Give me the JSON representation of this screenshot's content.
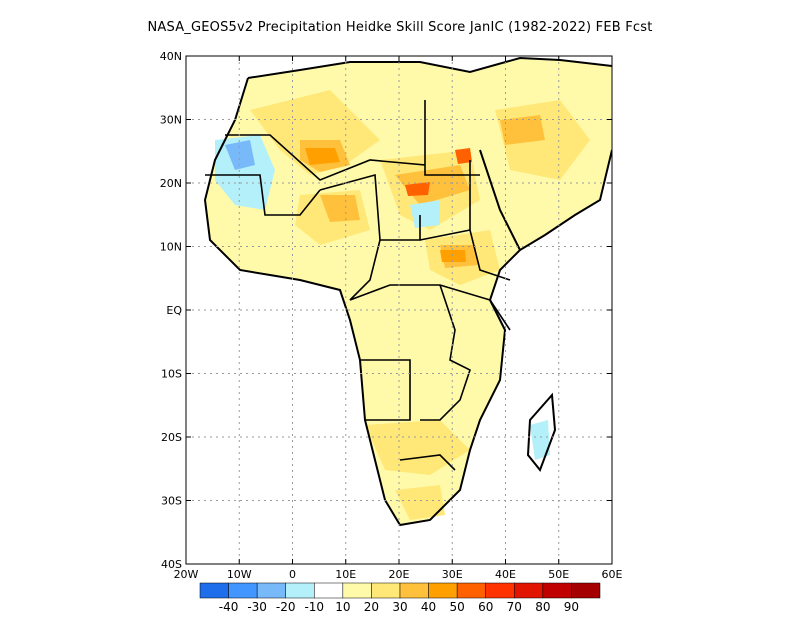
{
  "title": "NASA_GEOS5v2  Precipitation Heidke Skill Score JanIC (1982-2022) FEB Fcst",
  "map": {
    "lon_range": [
      -20,
      60
    ],
    "lat_range": [
      -40,
      40
    ],
    "lon_ticks": [
      {
        "value": -20,
        "label": "20W"
      },
      {
        "value": -10,
        "label": "10W"
      },
      {
        "value": 0,
        "label": "0"
      },
      {
        "value": 10,
        "label": "10E"
      },
      {
        "value": 20,
        "label": "20E"
      },
      {
        "value": 30,
        "label": "30E"
      },
      {
        "value": 40,
        "label": "40E"
      },
      {
        "value": 50,
        "label": "50E"
      },
      {
        "value": 60,
        "label": "60E"
      }
    ],
    "lat_ticks": [
      {
        "value": 40,
        "label": "40N"
      },
      {
        "value": 30,
        "label": "30N"
      },
      {
        "value": 20,
        "label": "20N"
      },
      {
        "value": 10,
        "label": "10N"
      },
      {
        "value": 0,
        "label": "EQ"
      },
      {
        "value": -10,
        "label": "10S"
      },
      {
        "value": -20,
        "label": "20S"
      },
      {
        "value": -30,
        "label": "30S"
      },
      {
        "value": -40,
        "label": "40S"
      }
    ],
    "grid": true
  },
  "colorbar": {
    "colors": [
      "#1e6eeb",
      "#4196ff",
      "#78b9fa",
      "#b4f0fa",
      "#ffffff",
      "#fffaaa",
      "#ffe878",
      "#ffc03c",
      "#ffa000",
      "#ff6000",
      "#ff3200",
      "#e11400",
      "#c00000",
      "#a50000"
    ],
    "labels": [
      "-40",
      "-30",
      "-20",
      "-10",
      "10",
      "20",
      "30",
      "40",
      "50",
      "60",
      "70",
      "80",
      "90"
    ]
  }
}
